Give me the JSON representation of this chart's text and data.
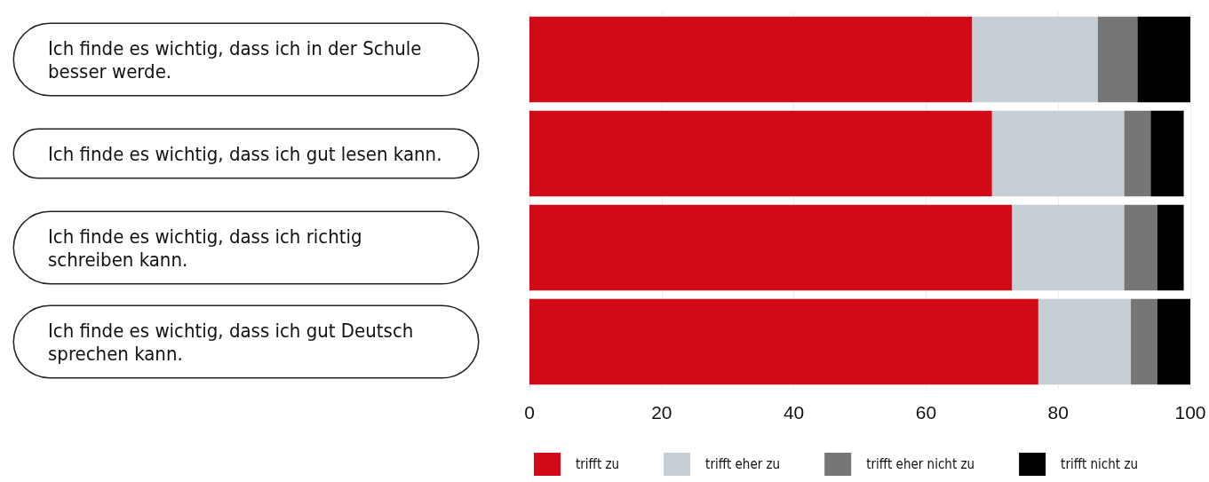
{
  "chart_data": {
    "type": "bar",
    "orientation": "horizontal",
    "stacked": true,
    "categories": [
      "Ich finde es wichtig, dass ich in der Schule besser werde.",
      "Ich finde es wichtig, dass ich gut lesen kann.",
      "Ich finde es wichtig, dass ich richtig schreiben kann.",
      "Ich finde es wichtig, dass ich gut Deutsch sprechen kann."
    ],
    "series": [
      {
        "name": "trifft zu",
        "color": "#d20a18",
        "values": [
          67,
          70,
          73,
          77
        ]
      },
      {
        "name": "trifft eher zu",
        "color": "#c7cfd6",
        "values": [
          19,
          20,
          17,
          14
        ]
      },
      {
        "name": "trifft eher nicht zu",
        "color": "#767676",
        "values": [
          6,
          4,
          5,
          4
        ]
      },
      {
        "name": "trifft nicht zu",
        "color": "#000000",
        "values": [
          8,
          5,
          4,
          5
        ]
      }
    ],
    "xlim": [
      0,
      100
    ],
    "xticks": [
      0,
      20,
      40,
      60,
      80,
      100
    ],
    "grid": "x",
    "legend": "bottom"
  }
}
